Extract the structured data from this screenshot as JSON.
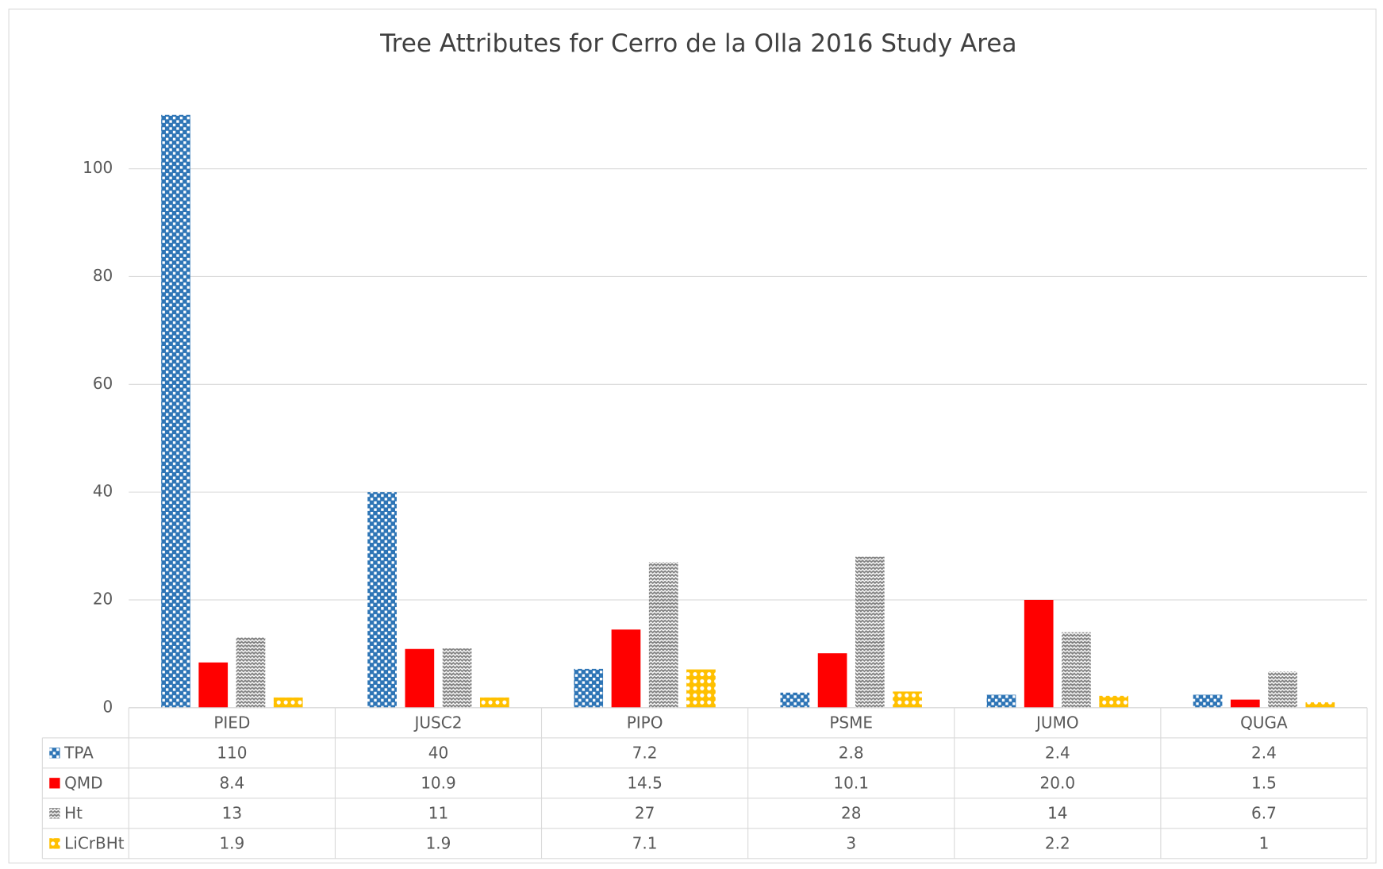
{
  "chart_data": {
    "type": "bar",
    "title": "Tree Attributes for Cerro de la Olla 2016 Study Area",
    "categories": [
      "PIED",
      "JUSC2",
      "PIPO",
      "PSME",
      "JUMO",
      "QUGA"
    ],
    "series": [
      {
        "name": "TPA",
        "color": "#2e75b6",
        "pattern": "dots",
        "values": [
          110,
          40,
          7.2,
          2.8,
          2.4,
          2.4
        ]
      },
      {
        "name": "QMD",
        "color": "#ff0000",
        "pattern": "solid",
        "values": [
          8.4,
          10.9,
          14.5,
          10.1,
          20,
          1.5
        ],
        "value_labels": [
          "8.4",
          "10.9",
          "14.5",
          "10.1",
          "20.0",
          "1.5"
        ]
      },
      {
        "name": "Ht",
        "color": "#808080",
        "pattern": "zigzag",
        "values": [
          13,
          11,
          27,
          28,
          14,
          6.7
        ]
      },
      {
        "name": "LiCrBHt",
        "color": "#ffc000",
        "pattern": "circles",
        "values": [
          1.9,
          1.9,
          7.1,
          3,
          2.2,
          1
        ]
      }
    ],
    "ylim": [
      0,
      110
    ],
    "yticks": [
      0,
      20,
      40,
      60,
      80,
      100
    ],
    "grid": true,
    "data_table": true
  }
}
